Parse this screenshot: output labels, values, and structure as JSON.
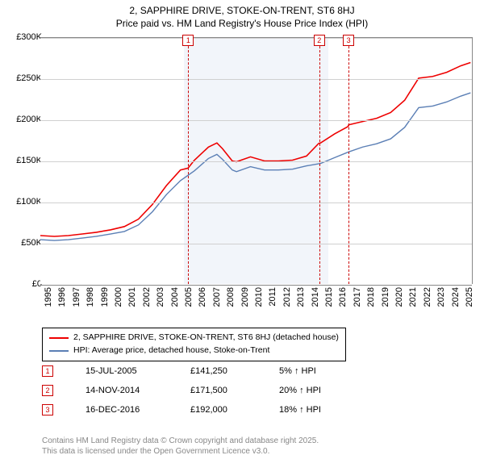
{
  "title_line1": "2, SAPPHIRE DRIVE, STOKE-ON-TRENT, ST6 8HJ",
  "title_line2": "Price paid vs. HM Land Registry's House Price Index (HPI)",
  "chart": {
    "type": "line",
    "background_color": "#ffffff",
    "grid_color": "#d0d0d0",
    "axis_color": "#888888",
    "xlim": [
      1995,
      2025.8
    ],
    "ylim": [
      0,
      300000
    ],
    "ytick_step": 50000,
    "yticks": [
      "£0",
      "£50K",
      "£100K",
      "£150K",
      "£200K",
      "£250K",
      "£300K"
    ],
    "xticks": [
      1995,
      1996,
      1997,
      1998,
      1999,
      2000,
      2001,
      2002,
      2003,
      2004,
      2005,
      2006,
      2007,
      2008,
      2009,
      2010,
      2011,
      2012,
      2013,
      2014,
      2015,
      2016,
      2017,
      2018,
      2019,
      2020,
      2021,
      2022,
      2023,
      2024,
      2025
    ],
    "shaded_region": {
      "start": 2005.2,
      "end": 2015.5,
      "color": "#e8edf5"
    },
    "subject_series": {
      "label": "2, SAPPHIRE DRIVE, STOKE-ON-TRENT, ST6 8HJ (detached house)",
      "color": "#ee0000",
      "line_width": 1.6,
      "data": [
        [
          1995,
          59000
        ],
        [
          1996,
          58000
        ],
        [
          1997,
          59000
        ],
        [
          1998,
          61000
        ],
        [
          1999,
          63000
        ],
        [
          2000,
          66000
        ],
        [
          2001,
          70000
        ],
        [
          2002,
          79000
        ],
        [
          2003,
          97000
        ],
        [
          2004,
          120000
        ],
        [
          2005,
          139000
        ],
        [
          2005.54,
          141250
        ],
        [
          2006,
          151000
        ],
        [
          2007,
          167000
        ],
        [
          2007.6,
          172000
        ],
        [
          2008,
          165000
        ],
        [
          2008.7,
          150000
        ],
        [
          2009,
          149000
        ],
        [
          2010,
          155000
        ],
        [
          2011,
          150000
        ],
        [
          2012,
          150000
        ],
        [
          2013,
          151000
        ],
        [
          2014,
          156000
        ],
        [
          2014.87,
          171500
        ],
        [
          2015,
          172000
        ],
        [
          2016,
          183000
        ],
        [
          2016.96,
          192000
        ],
        [
          2017,
          194000
        ],
        [
          2018,
          198000
        ],
        [
          2019,
          202000
        ],
        [
          2020,
          209000
        ],
        [
          2021,
          224000
        ],
        [
          2022,
          251000
        ],
        [
          2023,
          253000
        ],
        [
          2024,
          258000
        ],
        [
          2025,
          266000
        ],
        [
          2025.7,
          270000
        ]
      ]
    },
    "hpi_series": {
      "label": "HPI: Average price, detached house, Stoke-on-Trent",
      "color": "#5b7fb5",
      "line_width": 1.4,
      "data": [
        [
          1995,
          54000
        ],
        [
          1996,
          53000
        ],
        [
          1997,
          54000
        ],
        [
          1998,
          56000
        ],
        [
          1999,
          58000
        ],
        [
          2000,
          61000
        ],
        [
          2001,
          64000
        ],
        [
          2002,
          72000
        ],
        [
          2003,
          88000
        ],
        [
          2004,
          109000
        ],
        [
          2005,
          126000
        ],
        [
          2006,
          138000
        ],
        [
          2007,
          153000
        ],
        [
          2007.6,
          158000
        ],
        [
          2008,
          152000
        ],
        [
          2008.7,
          139000
        ],
        [
          2009,
          137000
        ],
        [
          2010,
          143000
        ],
        [
          2011,
          139000
        ],
        [
          2012,
          139000
        ],
        [
          2013,
          140000
        ],
        [
          2014,
          144000
        ],
        [
          2015,
          147000
        ],
        [
          2016,
          154000
        ],
        [
          2017,
          161000
        ],
        [
          2018,
          167000
        ],
        [
          2019,
          171000
        ],
        [
          2020,
          177000
        ],
        [
          2021,
          191000
        ],
        [
          2022,
          215000
        ],
        [
          2023,
          217000
        ],
        [
          2024,
          222000
        ],
        [
          2025,
          229000
        ],
        [
          2025.7,
          233000
        ]
      ]
    },
    "markers": [
      {
        "n": "1",
        "x": 2005.54
      },
      {
        "n": "2",
        "x": 2014.87
      },
      {
        "n": "3",
        "x": 2016.96
      }
    ]
  },
  "legend": {
    "border_color": "#000000"
  },
  "events": [
    {
      "n": "1",
      "date": "15-JUL-2005",
      "price": "£141,250",
      "delta": "5% ↑ HPI"
    },
    {
      "n": "2",
      "date": "14-NOV-2014",
      "price": "£171,500",
      "delta": "20% ↑ HPI"
    },
    {
      "n": "3",
      "date": "16-DEC-2016",
      "price": "£192,000",
      "delta": "18% ↑ HPI"
    }
  ],
  "footer_line1": "Contains HM Land Registry data © Crown copyright and database right 2025.",
  "footer_line2": "This data is licensed under the Open Government Licence v3.0."
}
